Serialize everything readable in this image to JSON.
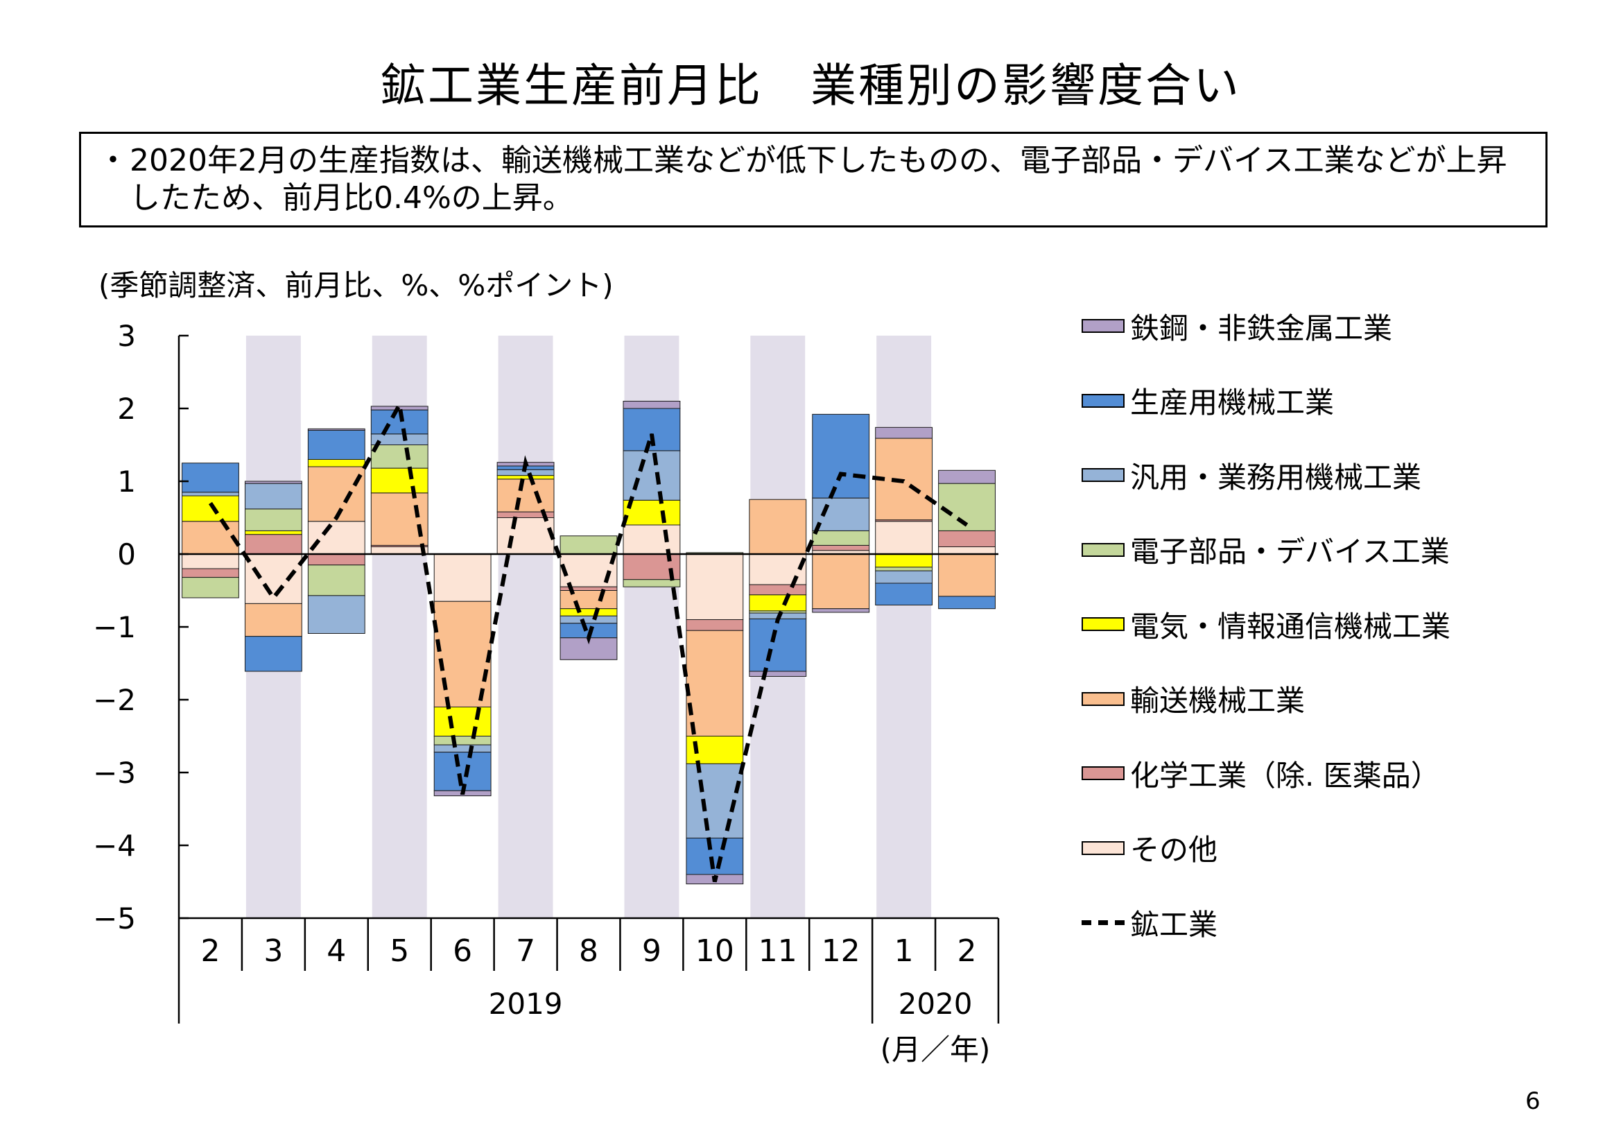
{
  "page": {
    "title": "鉱工業生産前月比　業種別の影響度合い",
    "summary_bullet": "・",
    "summary": "2020年2月の生産指数は、輸送機械工業などが低下したものの、電子部品・デバイス工業などが上昇したため、前月比0.4%の上昇。",
    "unit_note": "(季節調整済、前月比、%、%ポイント)",
    "page_number": "6"
  },
  "chart_data": {
    "type": "bar",
    "stacked": true,
    "title": "",
    "xlabel": "(月／年)",
    "ylabel": "",
    "ylim": [
      -5,
      3
    ],
    "yticks": [
      3,
      2,
      1,
      0,
      -1,
      -2,
      -3,
      -4,
      -5
    ],
    "categories": [
      "2",
      "3",
      "4",
      "5",
      "6",
      "7",
      "8",
      "9",
      "10",
      "11",
      "12",
      "1",
      "2"
    ],
    "year_groups": [
      {
        "label": "2019",
        "from": 0,
        "to": 10
      },
      {
        "label": "2020",
        "from": 11,
        "to": 12
      }
    ],
    "shaded_columns": [
      1,
      3,
      5,
      7,
      9,
      11
    ],
    "shade_color": "#e2deea",
    "grid": false,
    "legend_position": "right",
    "series": [
      {
        "name": "その他",
        "color": "#fce4d6",
        "values": [
          -0.2,
          -0.68,
          0.45,
          0.1,
          -0.65,
          0.5,
          -0.45,
          0.4,
          -0.9,
          -0.42,
          0.05,
          0.45,
          0.1
        ]
      },
      {
        "name": "化学工業（除. 医薬品）",
        "color": "#da9694",
        "values": [
          -0.12,
          0.27,
          -0.15,
          0.02,
          0.0,
          0.08,
          -0.05,
          -0.35,
          -0.15,
          -0.14,
          0.07,
          0.02,
          0.22
        ]
      },
      {
        "name": "輸送機械工業",
        "color": "#fabf8f",
        "values": [
          0.45,
          -0.45,
          0.75,
          0.72,
          -1.45,
          0.45,
          -0.25,
          0.0,
          -1.45,
          0.75,
          -0.75,
          1.12,
          -0.58
        ]
      },
      {
        "name": "電気・情報通信機械工業",
        "color": "#ffff00",
        "values": [
          0.35,
          0.05,
          0.1,
          0.34,
          -0.4,
          0.05,
          -0.1,
          0.34,
          -0.38,
          -0.22,
          0.0,
          -0.18,
          0.0
        ]
      },
      {
        "name": "電子部品・デバイス工業",
        "color": "#c4d79b",
        "values": [
          -0.28,
          0.3,
          -0.42,
          0.32,
          -0.12,
          0.0,
          0.25,
          -0.1,
          0.02,
          -0.03,
          0.2,
          -0.05,
          0.65
        ]
      },
      {
        "name": "汎用・業務用機械工業",
        "color": "#95b3d7",
        "values": [
          0.05,
          0.35,
          -0.52,
          0.15,
          -0.1,
          0.08,
          -0.1,
          0.68,
          -1.02,
          -0.08,
          0.45,
          -0.17,
          0.0
        ]
      },
      {
        "name": "生産用機械工業",
        "color": "#538dd5",
        "values": [
          0.4,
          -0.48,
          0.4,
          0.33,
          -0.53,
          0.05,
          -0.2,
          0.58,
          -0.5,
          -0.72,
          1.15,
          -0.3,
          -0.17
        ]
      },
      {
        "name": "鉄鋼・非鉄金属工業",
        "color": "#b1a0c7",
        "values": [
          0.0,
          0.03,
          0.02,
          0.05,
          -0.07,
          0.05,
          -0.3,
          0.1,
          -0.13,
          -0.07,
          -0.05,
          0.15,
          0.18
        ]
      }
    ],
    "total_line": {
      "name": "鉱工業",
      "color": "#000000",
      "values": [
        0.7,
        -0.6,
        0.5,
        2.05,
        -3.3,
        1.25,
        -1.15,
        1.65,
        -4.5,
        -0.9,
        1.1,
        1.0,
        0.4
      ]
    },
    "legend_order": [
      "鉄鋼・非鉄金属工業",
      "生産用機械工業",
      "汎用・業務用機械工業",
      "電子部品・デバイス工業",
      "電気・情報通信機械工業",
      "輸送機械工業",
      "化学工業（除. 医薬品）",
      "その他",
      "鉱工業"
    ]
  }
}
